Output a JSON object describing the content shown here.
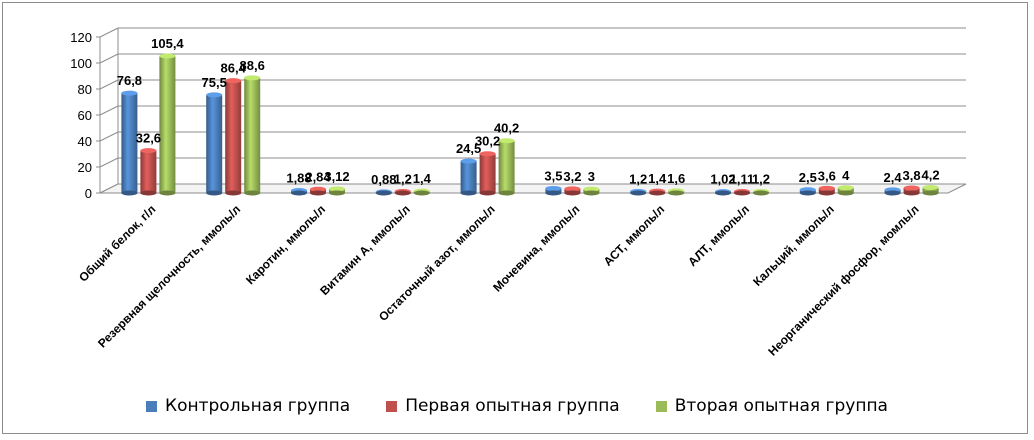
{
  "chart_data": {
    "type": "bar",
    "title": "",
    "xlabel": "",
    "ylabel": "",
    "ylim": [
      0,
      120
    ],
    "yticks": [
      "0",
      "20",
      "40",
      "60",
      "80",
      "100",
      "120"
    ],
    "grid": true,
    "legend_position": "bottom",
    "categories": [
      "Общий белок, г/л",
      "Резервная щелочность, ммоль/л",
      "Каротин, ммоль/л",
      "Витамин А, ммоль/л",
      "Остаточный азот, ммоль/л",
      "Мочевина, ммоль/л",
      "АСТ, ммоль/л",
      "АЛТ, ммоль/л",
      "Кальций, ммоль/л",
      "Неорганический фосфор, момль/л"
    ],
    "series": [
      {
        "name": "Контрольная группа",
        "color": "#4a7ebb",
        "values": [
          76.8,
          75.5,
          1.88,
          0.88,
          24.5,
          3.5,
          1.2,
          1.02,
          2.5,
          2.4
        ],
        "labels": [
          "76,8",
          "75,5",
          "1,88",
          "0,88",
          "24,5",
          "3,5",
          "1,2",
          "1,02",
          "2,5",
          "2,4"
        ]
      },
      {
        "name": "Первая опытная группа",
        "color": "#c0504d",
        "values": [
          32.6,
          86.4,
          2.84,
          1.2,
          30.2,
          3.2,
          1.4,
          1.11,
          3.6,
          3.8
        ],
        "labels": [
          "32,6",
          "86,4",
          "2,84",
          "1,2",
          "30,2",
          "3,2",
          "1,4",
          "1,11",
          "3,6",
          "3,8"
        ]
      },
      {
        "name": "Вторая опытная группа",
        "color": "#9bbb59",
        "values": [
          105.4,
          88.6,
          3.12,
          1.4,
          40.2,
          3,
          1.6,
          1.2,
          4,
          4.2
        ],
        "labels": [
          "105,4",
          "88,6",
          "3,12",
          "1,4",
          "40,2",
          "3",
          "1,6",
          "1,2",
          "4",
          "4,2"
        ]
      }
    ]
  }
}
